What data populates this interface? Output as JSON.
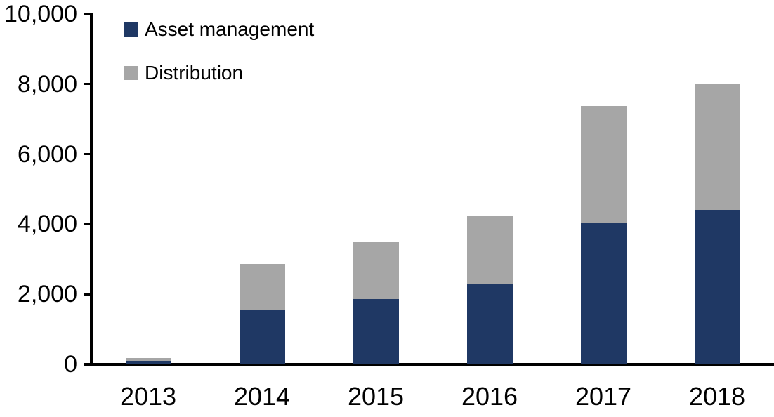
{
  "chart_data": {
    "type": "bar",
    "stacked": true,
    "title": "",
    "xlabel": "",
    "ylabel": "",
    "categories": [
      "2013",
      "2014",
      "2015",
      "2016",
      "2017",
      "2018"
    ],
    "series": [
      {
        "name": "Asset management",
        "color": "#1f3864",
        "values": [
          100,
          1540,
          1870,
          2290,
          4030,
          4410
        ]
      },
      {
        "name": "Distribution",
        "color": "#a6a6a6",
        "values": [
          90,
          1320,
          1620,
          1930,
          3350,
          3580
        ]
      }
    ],
    "totals": [
      190,
      2860,
      3490,
      4220,
      7380,
      7990
    ],
    "ylim": [
      0,
      10000
    ],
    "ytick_step": 2000,
    "ytick_labels": [
      "0",
      "2,000",
      "4,000",
      "6,000",
      "8,000",
      "10,000"
    ],
    "grid": false,
    "legend_position": "top-left",
    "axis_color": "#000000",
    "background_color": "#ffffff"
  },
  "legend": {
    "items": [
      {
        "label": "Asset management"
      },
      {
        "label": "Distribution"
      }
    ]
  }
}
